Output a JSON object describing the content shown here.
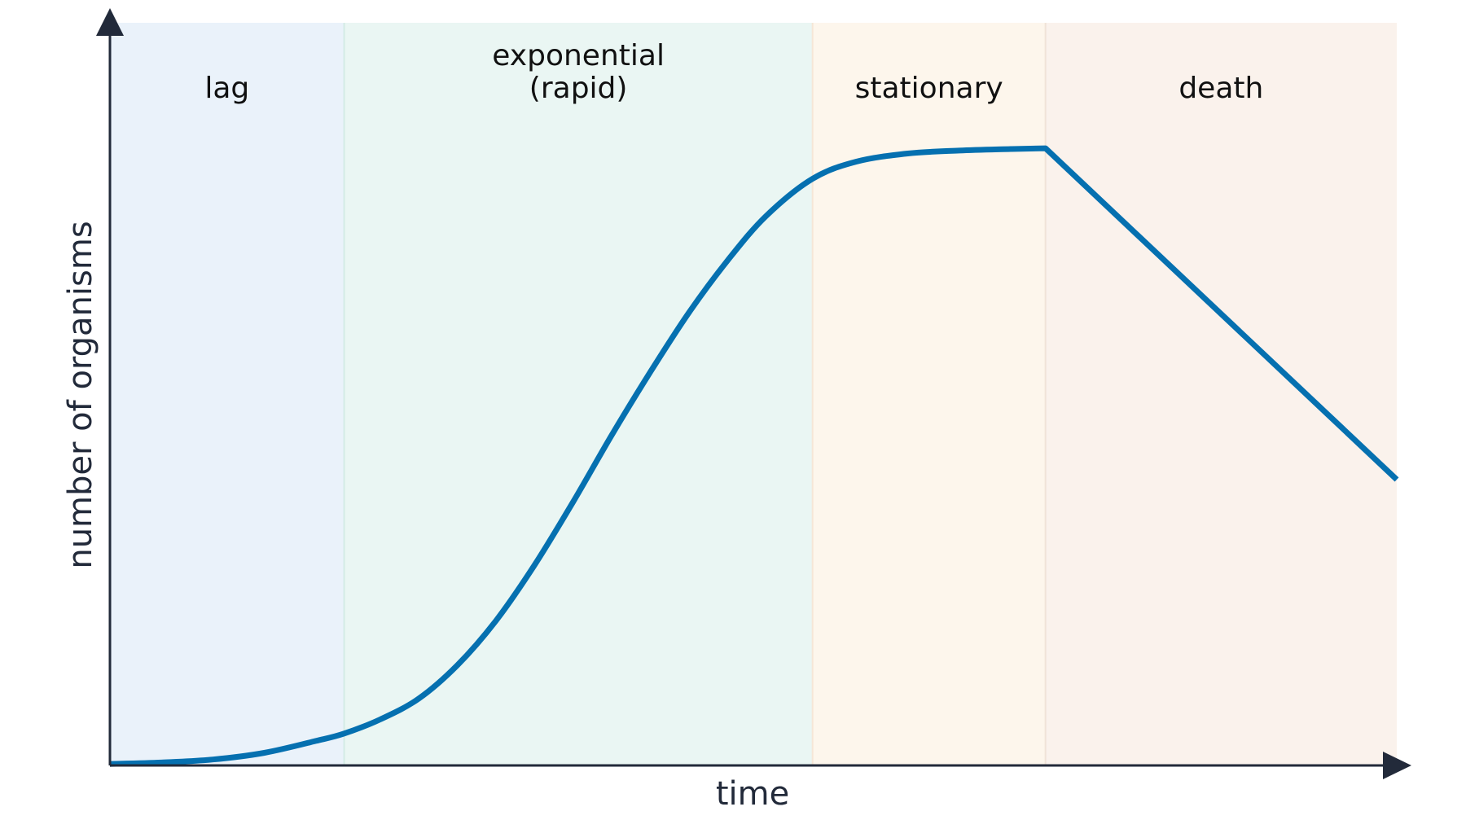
{
  "chart_data": {
    "type": "line",
    "title": "",
    "xlabel": "time",
    "ylabel": "number of organisms",
    "x_range": [
      0,
      100
    ],
    "y_range": [
      0,
      100
    ],
    "grid": false,
    "legend": "none",
    "phases": [
      {
        "name": "lag",
        "lines": [
          "lag"
        ],
        "x_start": 0,
        "x_end": 18.2,
        "color": "#eaf2fa",
        "border": "#d4e5f2"
      },
      {
        "name": "exponential",
        "lines": [
          "exponential",
          "(rapid)"
        ],
        "x_start": 18.2,
        "x_end": 54.6,
        "color": "#eaf6f3",
        "border": "#d4ebe5"
      },
      {
        "name": "stationary",
        "lines": [
          "stationary"
        ],
        "x_start": 54.6,
        "x_end": 72.7,
        "color": "#fdf6ec",
        "border": "#f5e6d6"
      },
      {
        "name": "death",
        "lines": [
          "death"
        ],
        "x_start": 72.7,
        "x_end": 100,
        "color": "#faf2ec",
        "border": "#f0e3d8"
      }
    ],
    "series": [
      {
        "line_color": "#0570b0",
        "points": [
          [
            0,
            0.2
          ],
          [
            4,
            0.4
          ],
          [
            8,
            0.8
          ],
          [
            12,
            1.7
          ],
          [
            16,
            3.3
          ],
          [
            18.2,
            4.3
          ],
          [
            21,
            6.2
          ],
          [
            24,
            9.0
          ],
          [
            27,
            13.5
          ],
          [
            30,
            19.5
          ],
          [
            33,
            27.0
          ],
          [
            36,
            35.5
          ],
          [
            39,
            44.5
          ],
          [
            42,
            53.0
          ],
          [
            45,
            61.0
          ],
          [
            48,
            68.0
          ],
          [
            51,
            74.0
          ],
          [
            54.6,
            79.0
          ],
          [
            58,
            81.3
          ],
          [
            62,
            82.4
          ],
          [
            66,
            82.8
          ],
          [
            70,
            83.0
          ],
          [
            72.7,
            83.1
          ],
          [
            100,
            38.5
          ]
        ]
      }
    ]
  }
}
